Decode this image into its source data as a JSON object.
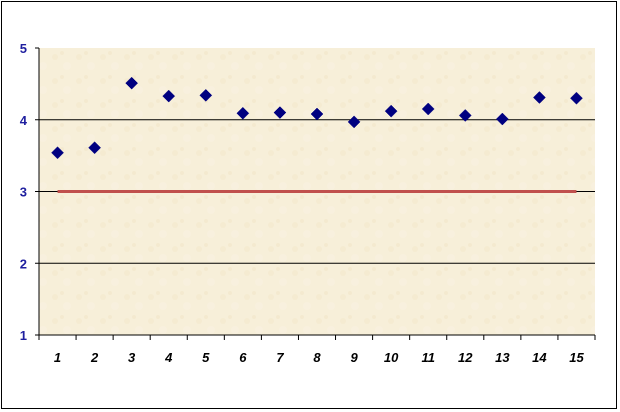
{
  "chart_data": {
    "type": "scatter",
    "title": "",
    "xlabel": "",
    "ylabel": "",
    "x": [
      1,
      2,
      3,
      4,
      5,
      6,
      7,
      8,
      9,
      10,
      11,
      12,
      13,
      14,
      15
    ],
    "series": [
      {
        "values": [
          3.54,
          3.61,
          4.51,
          4.33,
          4.34,
          4.09,
          4.1,
          4.08,
          3.97,
          4.12,
          4.15,
          4.06,
          4.01,
          4.31,
          4.3
        ],
        "marker": "diamond",
        "color": "#000080"
      }
    ],
    "reference_line": {
      "y": 3,
      "x_from": 1,
      "x_to": 15,
      "color": "#c0504d"
    },
    "x_tick_labels": [
      "1",
      "2",
      "3",
      "4",
      "5",
      "6",
      "7",
      "8",
      "9",
      "10",
      "11",
      "12",
      "13",
      "14",
      "15"
    ],
    "y_tick_labels": [
      "1",
      "2",
      "3",
      "4",
      "5"
    ],
    "ylim": [
      1,
      5
    ],
    "xlim": [
      0.5,
      15.5
    ],
    "grid": true,
    "legend": "none",
    "plot_background": "#f6edd6"
  }
}
